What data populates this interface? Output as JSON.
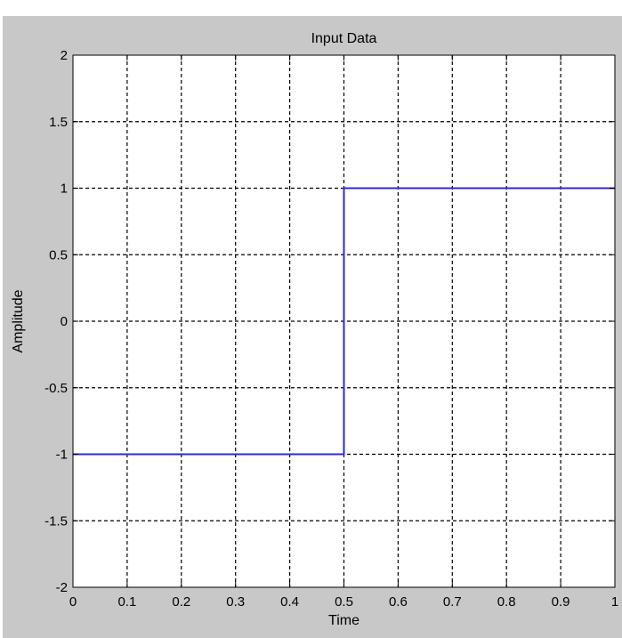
{
  "chart_data": {
    "type": "line",
    "title": "Input Data",
    "xlabel": "Time",
    "ylabel": "Amplitude",
    "xlim": [
      0,
      1
    ],
    "ylim": [
      -2,
      2
    ],
    "xticks": [
      "0",
      "0.1",
      "0.2",
      "0.3",
      "0.4",
      "0.5",
      "0.6",
      "0.7",
      "0.8",
      "0.9",
      "1"
    ],
    "yticks": [
      "2",
      "1.5",
      "1",
      "0.5",
      "0",
      "-0.5",
      "-1",
      "-1.5",
      "-2"
    ],
    "grid": true,
    "grid_style": "dashed",
    "series": [
      {
        "color": "#2b2bd6",
        "x": [
          0,
          0.5,
          0.5,
          1
        ],
        "y": [
          -1,
          -1,
          1,
          1
        ]
      }
    ]
  },
  "colors": {
    "figure_background": "#c8c8c8",
    "axes_background": "#ffffff",
    "line": "#2b2bd6"
  }
}
